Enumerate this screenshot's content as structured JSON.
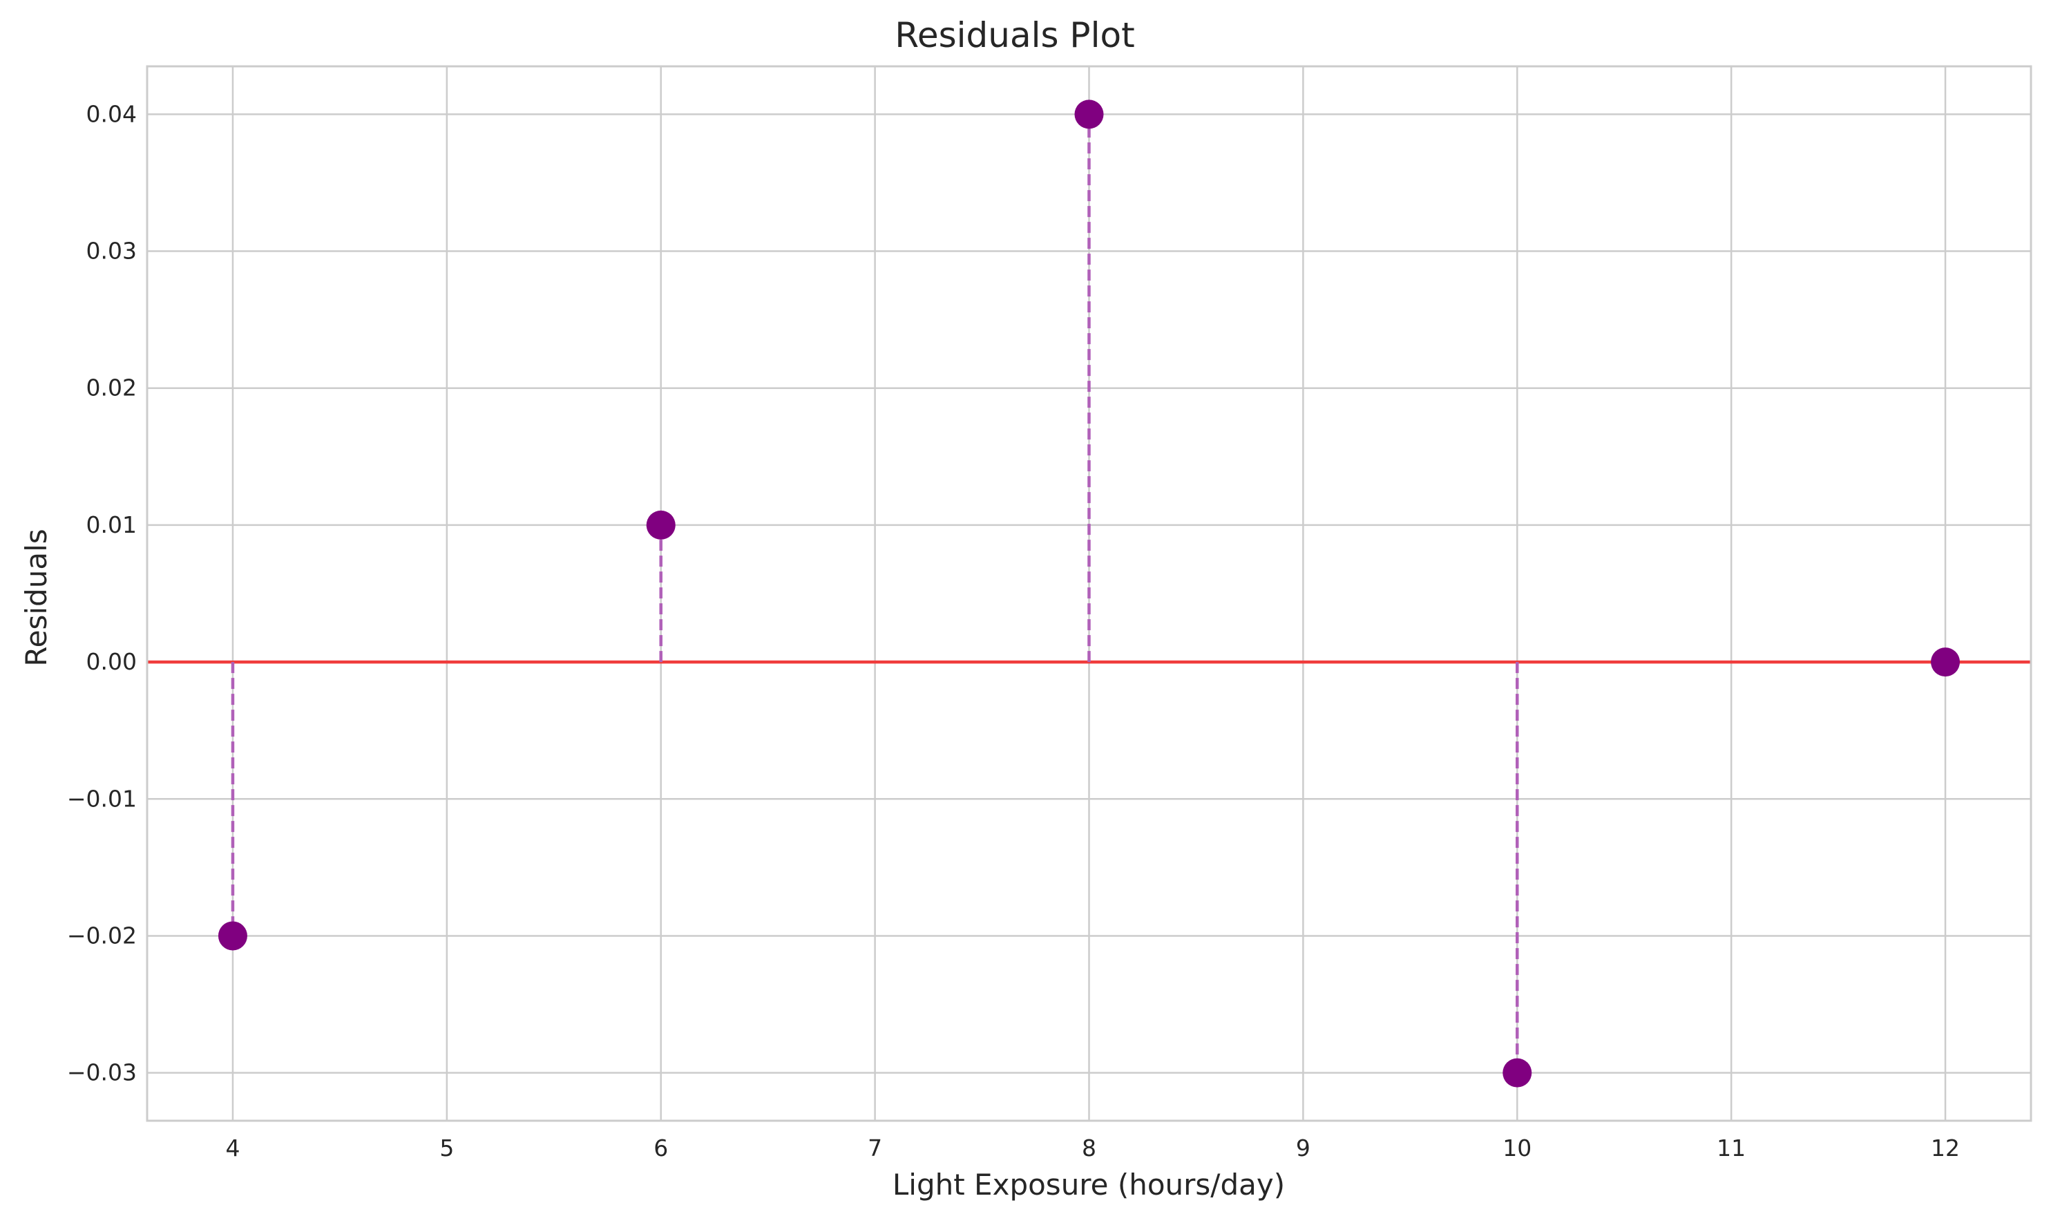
{
  "chart_data": {
    "type": "scatter",
    "title": "Residuals Plot",
    "xlabel": "Light Exposure (hours/day)",
    "ylabel": "Residuals",
    "xlim": [
      3.6,
      12.4
    ],
    "ylim": [
      -0.0335,
      0.0435
    ],
    "xticks": [
      4,
      5,
      6,
      7,
      8,
      9,
      10,
      11,
      12
    ],
    "yticks": [
      -0.03,
      -0.02,
      -0.01,
      0.0,
      0.01,
      0.02,
      0.03,
      0.04
    ],
    "ytick_labels": [
      "−0.03",
      "−0.02",
      "−0.01",
      "0.00",
      "0.01",
      "0.02",
      "0.03",
      "0.04"
    ],
    "grid": true,
    "reference_line": {
      "y": 0,
      "color": "#f03c3c"
    },
    "series": [
      {
        "x": [
          4,
          6,
          8,
          10,
          12
        ],
        "y": [
          -0.02,
          0.01,
          0.04,
          -0.03,
          0.0
        ],
        "color": "#800080",
        "stem_color": "#b060b8",
        "stem_style": "dashed"
      }
    ]
  }
}
